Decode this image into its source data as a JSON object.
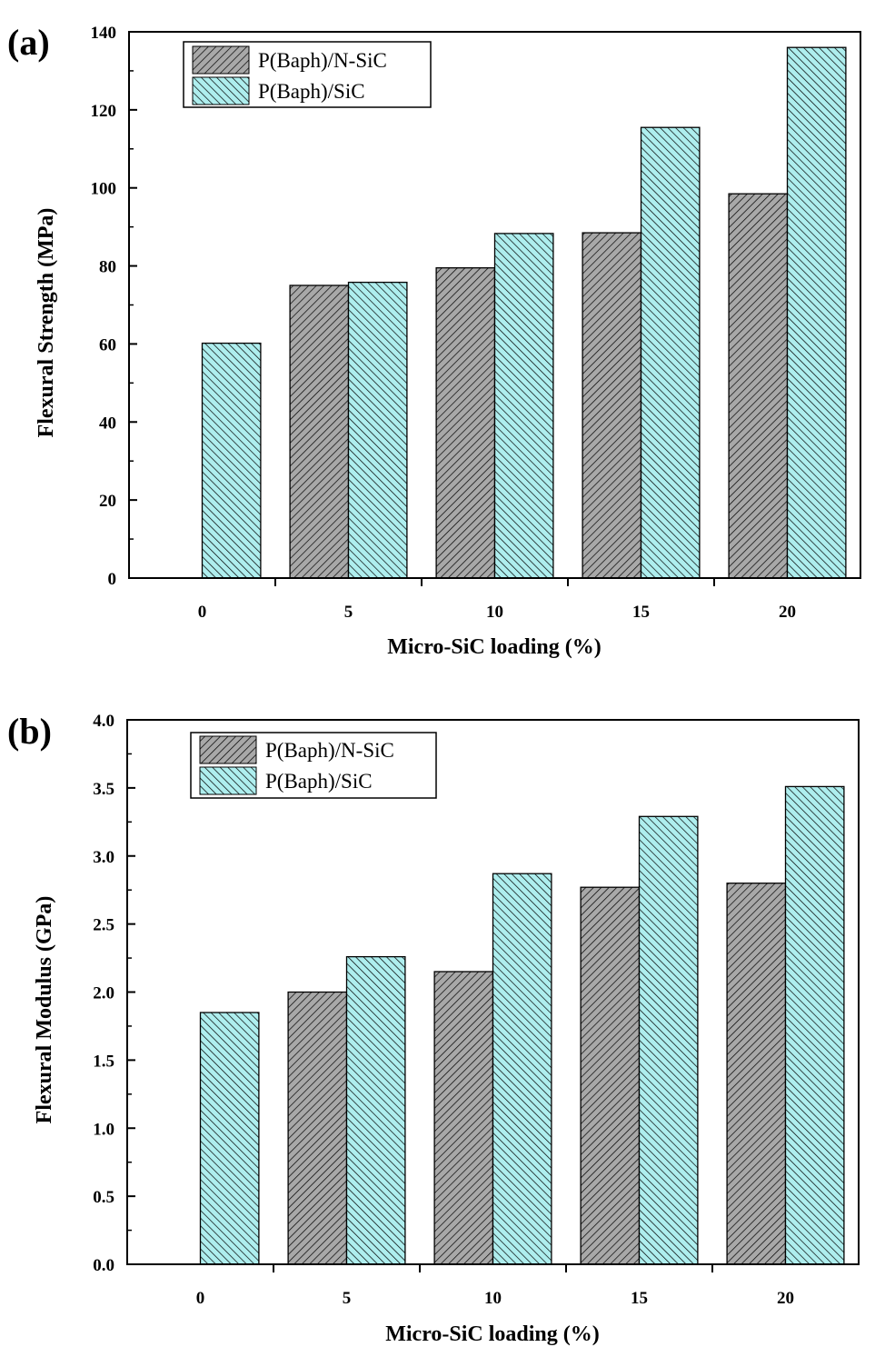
{
  "colors": {
    "nsic_fill": "#a8a8a8",
    "sic_fill": "#aeeeee",
    "hatch": "#000000"
  },
  "chart_data": [
    {
      "type": "bar",
      "panel_label": "(a)",
      "categories": [
        "0",
        "5",
        "10",
        "15",
        "20"
      ],
      "series": [
        {
          "name": "P(Baph)/N-SiC",
          "values": [
            null,
            75.0,
            79.5,
            88.5,
            98.5
          ],
          "pattern": "forward-hatch"
        },
        {
          "name": "P(Baph)/SiC",
          "values": [
            60.2,
            75.8,
            88.3,
            115.5,
            136.0
          ],
          "pattern": "backward-hatch"
        }
      ],
      "xlabel": "Micro-SiC loading (%)",
      "ylabel": "Flexural Strength (MPa)",
      "ylim": [
        0,
        140
      ],
      "yticks": [
        "0",
        "20",
        "40",
        "60",
        "80",
        "100",
        "120",
        "140"
      ],
      "legend_position": "top-left",
      "grid": false
    },
    {
      "type": "bar",
      "panel_label": "(b)",
      "categories": [
        "0",
        "5",
        "10",
        "15",
        "20"
      ],
      "series": [
        {
          "name": "P(Baph)/N-SiC",
          "values": [
            null,
            2.0,
            2.15,
            2.77,
            2.8
          ],
          "pattern": "forward-hatch"
        },
        {
          "name": "P(Baph)/SiC",
          "values": [
            1.85,
            2.26,
            2.87,
            3.29,
            3.51
          ],
          "pattern": "backward-hatch"
        }
      ],
      "xlabel": "Micro-SiC loading (%)",
      "ylabel": "Flexural Modulus (GPa)",
      "ylim": [
        0,
        4.0
      ],
      "yticks": [
        "0.0",
        "0.5",
        "1.0",
        "1.5",
        "2.0",
        "2.5",
        "3.0",
        "3.5",
        "4.0"
      ],
      "legend_position": "top-left",
      "grid": false
    }
  ]
}
